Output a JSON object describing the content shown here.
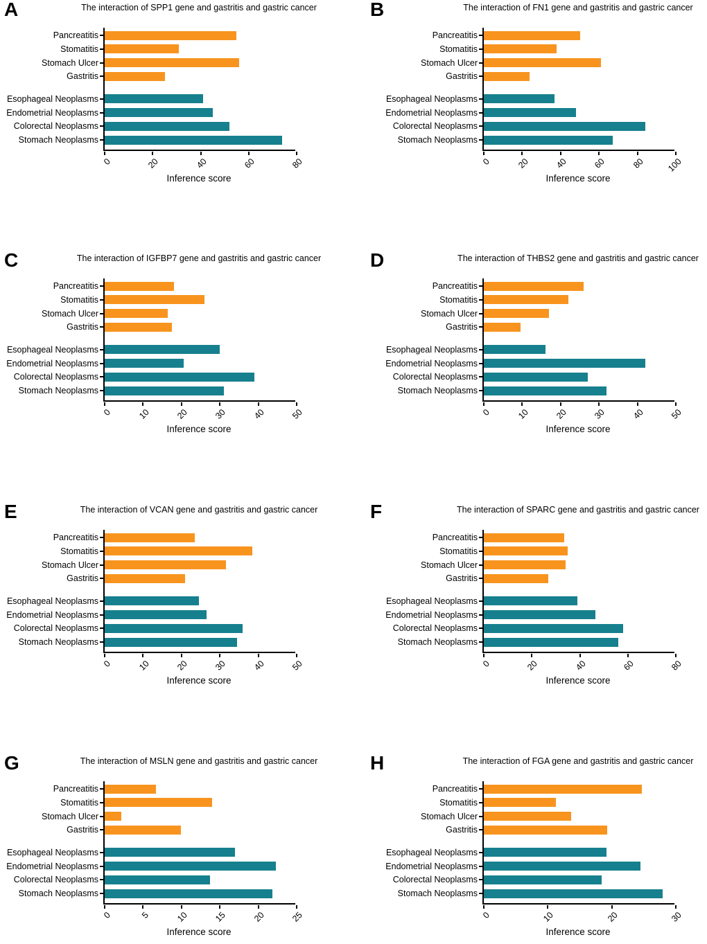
{
  "style": {
    "inflammation_color": "#F8941E",
    "neoplasm_color": "#16808E",
    "axis_color": "#000000",
    "text_color": "#000000",
    "inflammation_count": 4
  },
  "chart_data": [
    {
      "panel": "A",
      "gene": "SPP1",
      "type": "bar",
      "orientation": "horizontal",
      "title": "The interaction of SPP1 gene and gastritis and gastric cancer",
      "xlabel": "Inference score",
      "xlim": [
        0,
        80
      ],
      "ticks": [
        0,
        20,
        40,
        60,
        80
      ],
      "grid": false,
      "categories": [
        "Pancreatitis",
        "Stomatitis",
        "Stomach Ulcer",
        "Gastritis",
        "Esophageal Neoplasms",
        "Endometrial Neoplasms",
        "Colorectal Neoplasms",
        "Stomach Neoplasms"
      ],
      "values": [
        55,
        31,
        56,
        25,
        41,
        45,
        52,
        74
      ]
    },
    {
      "panel": "B",
      "gene": "FN1",
      "type": "bar",
      "orientation": "horizontal",
      "title": "The interaction of FN1 gene and gastritis and gastric cancer",
      "xlabel": "Inference score",
      "xlim": [
        0,
        100
      ],
      "ticks": [
        0,
        20,
        40,
        60,
        80,
        100
      ],
      "grid": false,
      "categories": [
        "Pancreatitis",
        "Stomatitis",
        "Stomach Ulcer",
        "Gastritis",
        "Esophageal Neoplasms",
        "Endometrial Neoplasms",
        "Colorectal Neoplasms",
        "Stomach Neoplasms"
      ],
      "values": [
        50,
        38,
        61,
        24,
        37,
        48,
        84,
        67
      ]
    },
    {
      "panel": "C",
      "gene": "IGFBP7",
      "type": "bar",
      "orientation": "horizontal",
      "title": "The interaction of IGFBP7 gene and gastritis and gastric cancer",
      "xlabel": "Inference score",
      "xlim": [
        0,
        50
      ],
      "ticks": [
        0,
        10,
        20,
        30,
        40,
        50
      ],
      "grid": false,
      "categories": [
        "Pancreatitis",
        "Stomatitis",
        "Stomach Ulcer",
        "Gastritis",
        "Esophageal Neoplasms",
        "Endometrial Neoplasms",
        "Colorectal Neoplasms",
        "Stomach Neoplasms"
      ],
      "values": [
        18,
        26,
        16.5,
        17.5,
        30,
        20.5,
        39,
        31
      ]
    },
    {
      "panel": "D",
      "gene": "THBS2",
      "type": "bar",
      "orientation": "horizontal",
      "title": "The interaction of THBS2 gene and gastritis and gastric cancer",
      "xlabel": "Inference score",
      "xlim": [
        0,
        50
      ],
      "ticks": [
        0,
        10,
        20,
        30,
        40,
        50
      ],
      "grid": false,
      "categories": [
        "Pancreatitis",
        "Stomatitis",
        "Stomach Ulcer",
        "Gastritis",
        "Esophageal Neoplasms",
        "Endometrial Neoplasms",
        "Colorectal Neoplasms",
        "Stomach Neoplasms"
      ],
      "values": [
        26,
        22,
        17,
        9.5,
        16,
        42,
        27,
        32
      ]
    },
    {
      "panel": "E",
      "gene": "VCAN",
      "type": "bar",
      "orientation": "horizontal",
      "title": "The interaction of VCAN gene and gastritis and gastric cancer",
      "xlabel": "Inference score",
      "xlim": [
        0,
        50
      ],
      "ticks": [
        0,
        10,
        20,
        30,
        40,
        50
      ],
      "grid": false,
      "categories": [
        "Pancreatitis",
        "Stomatitis",
        "Stomach Ulcer",
        "Gastritis",
        "Esophageal Neoplasms",
        "Endometrial Neoplasms",
        "Colorectal Neoplasms",
        "Stomach Neoplasms"
      ],
      "values": [
        23.5,
        38.5,
        31.5,
        21,
        24.5,
        26.5,
        36,
        34.5
      ]
    },
    {
      "panel": "F",
      "gene": "SPARC",
      "type": "bar",
      "orientation": "horizontal",
      "title": "The interaction of SPARC gene and gastritis and gastric cancer",
      "xlabel": "Inference score",
      "xlim": [
        0,
        80
      ],
      "ticks": [
        0,
        20,
        40,
        60,
        80
      ],
      "grid": false,
      "categories": [
        "Pancreatitis",
        "Stomatitis",
        "Stomach Ulcer",
        "Gastritis",
        "Esophageal Neoplasms",
        "Endometrial Neoplasms",
        "Colorectal Neoplasms",
        "Stomach Neoplasms"
      ],
      "values": [
        33.5,
        35,
        34,
        27,
        39,
        46.5,
        58,
        56
      ]
    },
    {
      "panel": "G",
      "gene": "MSLN",
      "type": "bar",
      "orientation": "horizontal",
      "title": "The interaction of MSLN gene and gastritis and gastric cancer",
      "xlabel": "Inference score",
      "xlim": [
        0,
        25
      ],
      "ticks": [
        0,
        5,
        10,
        15,
        20,
        25
      ],
      "grid": false,
      "categories": [
        "Pancreatitis",
        "Stomatitis",
        "Stomach Ulcer",
        "Gastritis",
        "Esophageal Neoplasms",
        "Endometrial Neoplasms",
        "Colorectal Neoplasms",
        "Stomach Neoplasms"
      ],
      "values": [
        6.7,
        14,
        2.2,
        9.9,
        17,
        22.3,
        13.7,
        21.8
      ]
    },
    {
      "panel": "H",
      "gene": "FGA",
      "type": "bar",
      "orientation": "horizontal",
      "title": "The interaction of FGA gene and gastritis and gastric cancer",
      "xlabel": "Inference score",
      "xlim": [
        0,
        30
      ],
      "ticks": [
        0,
        10,
        20,
        30
      ],
      "grid": false,
      "categories": [
        "Pancreatitis",
        "Stomatitis",
        "Stomach Ulcer",
        "Gastritis",
        "Esophageal Neoplasms",
        "Endometrial Neoplasms",
        "Colorectal Neoplasms",
        "Stomach Neoplasms"
      ],
      "values": [
        24.7,
        11.3,
        13.7,
        19.3,
        19.2,
        24.5,
        18.4,
        27.9
      ]
    }
  ]
}
